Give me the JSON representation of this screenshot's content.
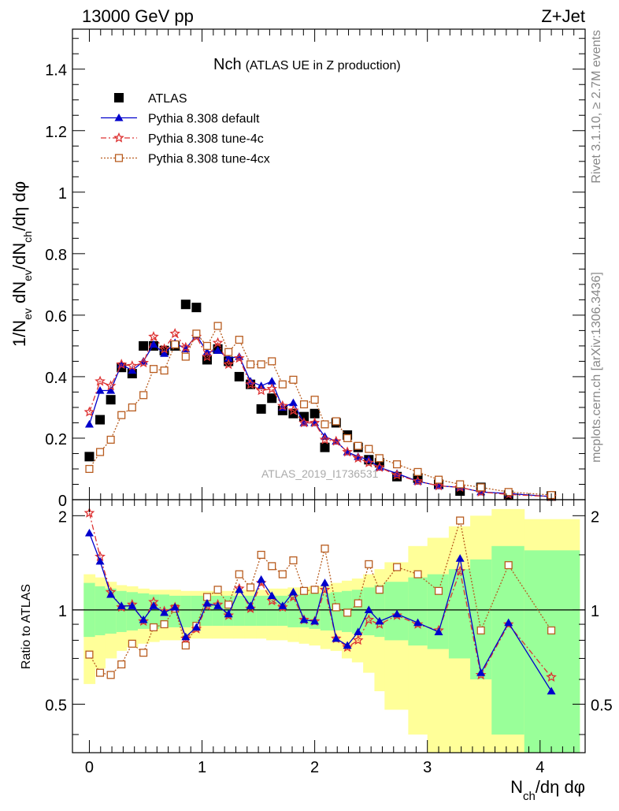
{
  "header": {
    "left": "13000 GeV pp",
    "right": "Z+Jet"
  },
  "side_labels": {
    "rivet": "Rivet 3.1.10, ≥ 2.7M events",
    "mcplots": "mcplots.cern.ch [arXiv:1306.3436]"
  },
  "chart_data": [
    {
      "type": "scatter",
      "panel": "main",
      "title_main": "Nch",
      "title_sub": "(ATLAS UE in Z production)",
      "watermark": "ATLAS_2019_I1736531",
      "ylabel": "1/N_ev dN_ev/dN_ch/dη dφ",
      "ylabel_parts": [
        "1/N",
        "ev",
        " dN",
        "ev",
        "/dN",
        "ch",
        "/dη dφ"
      ],
      "xlim": [
        -0.15,
        4.4
      ],
      "ylim": [
        0,
        1.53
      ],
      "y_ticks": [
        "0",
        "0.2",
        "0.4",
        "0.6",
        "0.8",
        "1",
        "1.2",
        "1.4"
      ],
      "legend_position": "top-left",
      "legend": [
        "ATLAS",
        "Pythia 8.308 default",
        "Pythia 8.308 tune-4c",
        "Pythia 8.308 tune-4cx"
      ],
      "x": [
        0,
        0.095,
        0.19,
        0.285,
        0.38,
        0.48,
        0.57,
        0.665,
        0.76,
        0.855,
        0.95,
        1.045,
        1.14,
        1.235,
        1.33,
        1.43,
        1.525,
        1.62,
        1.715,
        1.81,
        1.905,
        2.0,
        2.09,
        2.19,
        2.29,
        2.385,
        2.48,
        2.575,
        2.73,
        2.915,
        3.1,
        3.29,
        3.475,
        3.72,
        4.1
      ],
      "series": [
        {
          "name": "ATLAS",
          "color": "#000000",
          "marker": "square",
          "values": [
            0.14,
            0.26,
            0.325,
            0.43,
            0.41,
            0.5,
            0.5,
            0.485,
            0.5,
            0.635,
            0.625,
            0.455,
            0.49,
            0.45,
            0.4,
            0.375,
            0.295,
            0.33,
            0.29,
            0.28,
            0.27,
            0.28,
            0.17,
            0.25,
            0.21,
            0.17,
            0.13,
            0.12,
            0.075,
            0.07,
            0.05,
            0.028,
            0.04,
            0.015,
            0.012
          ]
        },
        {
          "name": "Pythia 8.308 default",
          "color": "#0000cc",
          "marker": "triangle",
          "values": [
            0.245,
            0.355,
            0.355,
            0.44,
            0.42,
            0.45,
            0.505,
            0.475,
            0.51,
            0.49,
            0.535,
            0.48,
            0.485,
            0.46,
            0.465,
            0.385,
            0.37,
            0.385,
            0.3,
            0.315,
            0.25,
            0.25,
            0.205,
            0.19,
            0.155,
            0.14,
            0.13,
            0.105,
            0.085,
            0.06,
            0.045,
            0.04,
            0.025,
            0.02,
            0.01
          ]
        },
        {
          "name": "Pythia 8.308 tune-4c",
          "color": "#dd3333",
          "marker": "star",
          "values": [
            0.285,
            0.385,
            0.37,
            0.44,
            0.435,
            0.445,
            0.53,
            0.49,
            0.54,
            0.495,
            0.53,
            0.465,
            0.51,
            0.44,
            0.46,
            0.375,
            0.355,
            0.36,
            0.305,
            0.29,
            0.25,
            0.25,
            0.195,
            0.19,
            0.155,
            0.135,
            0.12,
            0.105,
            0.08,
            0.06,
            0.045,
            0.04,
            0.025,
            0.017,
            0.01
          ]
        },
        {
          "name": "Pythia 8.308 tune-4cx",
          "color": "#b85c1f",
          "marker": "open-square",
          "values": [
            0.1,
            0.155,
            0.195,
            0.275,
            0.3,
            0.34,
            0.425,
            0.42,
            0.505,
            0.465,
            0.54,
            0.5,
            0.565,
            0.48,
            0.52,
            0.44,
            0.44,
            0.45,
            0.375,
            0.39,
            0.31,
            0.325,
            0.245,
            0.255,
            0.2,
            0.175,
            0.165,
            0.135,
            0.115,
            0.09,
            0.065,
            0.05,
            0.04,
            0.025,
            0.015
          ]
        }
      ]
    },
    {
      "type": "line",
      "panel": "ratio",
      "ylabel": "Ratio to ATLAS",
      "xlabel": "N_ch/dη dφ",
      "xlabel_parts": [
        "N",
        "ch",
        "/dη dφ"
      ],
      "xlim": [
        -0.15,
        4.4
      ],
      "ylim": [
        0.35,
        2.25
      ],
      "y_ticks": [
        "0.5",
        "1",
        "2"
      ],
      "x_ticks": [
        "0",
        "1",
        "2",
        "3",
        "4"
      ],
      "reference_line": 1,
      "band_edges": [
        -0.05,
        0.05,
        0.14,
        0.24,
        0.33,
        0.43,
        0.53,
        0.62,
        0.71,
        0.81,
        0.9,
        1.0,
        1.09,
        1.19,
        1.28,
        1.38,
        1.48,
        1.57,
        1.67,
        1.76,
        1.86,
        1.95,
        2.05,
        2.14,
        2.24,
        2.33,
        2.43,
        2.53,
        2.62,
        2.83,
        3.0,
        3.19,
        3.38,
        3.57,
        3.86,
        4.35
      ],
      "band_inner_low": [
        0.82,
        0.83,
        0.84,
        0.85,
        0.86,
        0.87,
        0.87,
        0.88,
        0.88,
        0.88,
        0.89,
        0.89,
        0.89,
        0.89,
        0.89,
        0.89,
        0.89,
        0.89,
        0.89,
        0.88,
        0.88,
        0.87,
        0.86,
        0.86,
        0.85,
        0.84,
        0.83,
        0.82,
        0.8,
        0.77,
        0.75,
        0.7,
        0.6,
        0.4,
        0.35
      ],
      "band_inner_high": [
        1.22,
        1.19,
        1.17,
        1.15,
        1.14,
        1.13,
        1.12,
        1.12,
        1.11,
        1.11,
        1.11,
        1.11,
        1.11,
        1.11,
        1.11,
        1.11,
        1.11,
        1.11,
        1.11,
        1.12,
        1.12,
        1.13,
        1.13,
        1.14,
        1.15,
        1.16,
        1.18,
        1.2,
        1.23,
        1.27,
        1.3,
        1.35,
        1.45,
        1.6,
        1.55
      ],
      "band_outer_low": [
        0.58,
        0.65,
        0.7,
        0.74,
        0.76,
        0.78,
        0.79,
        0.8,
        0.8,
        0.81,
        0.81,
        0.81,
        0.81,
        0.81,
        0.81,
        0.81,
        0.81,
        0.8,
        0.8,
        0.79,
        0.78,
        0.77,
        0.75,
        0.74,
        0.7,
        0.68,
        0.63,
        0.55,
        0.48,
        0.4,
        0.35,
        0.35,
        0.35,
        0.35,
        0.35
      ],
      "band_outer_high": [
        1.3,
        1.27,
        1.23,
        1.2,
        1.19,
        1.17,
        1.16,
        1.16,
        1.16,
        1.15,
        1.15,
        1.15,
        1.15,
        1.15,
        1.16,
        1.16,
        1.16,
        1.17,
        1.17,
        1.18,
        1.18,
        1.19,
        1.2,
        1.22,
        1.24,
        1.26,
        1.3,
        1.35,
        1.42,
        1.6,
        1.7,
        1.85,
        2.0,
        2.1,
        1.95
      ],
      "x": [
        0,
        0.095,
        0.19,
        0.285,
        0.38,
        0.48,
        0.57,
        0.665,
        0.76,
        0.855,
        0.95,
        1.045,
        1.14,
        1.235,
        1.33,
        1.43,
        1.525,
        1.62,
        1.715,
        1.81,
        1.905,
        2.0,
        2.09,
        2.19,
        2.29,
        2.385,
        2.48,
        2.575,
        2.73,
        2.915,
        3.1,
        3.29,
        3.475,
        3.72,
        4.1
      ],
      "series": [
        {
          "name": "Pythia 8.308 default",
          "color": "#0000cc",
          "marker": "triangle",
          "values": [
            1.76,
            1.43,
            1.12,
            1.03,
            1.03,
            0.93,
            1.03,
            0.98,
            1.02,
            0.82,
            0.88,
            1.05,
            1.03,
            0.97,
            1.16,
            1.03,
            1.25,
            1.11,
            1.03,
            1.14,
            0.93,
            0.92,
            1.22,
            0.81,
            0.77,
            0.85,
            1.0,
            0.92,
            0.97,
            0.91,
            0.85,
            1.46,
            0.63,
            0.91,
            0.55
          ]
        },
        {
          "name": "Pythia 8.308 tune-4c",
          "color": "#dd3333",
          "marker": "star",
          "values": [
            2.04,
            1.48,
            1.14,
            1.02,
            1.04,
            0.92,
            1.06,
            0.99,
            1.02,
            0.81,
            0.87,
            1.03,
            1.04,
            0.96,
            1.17,
            1.01,
            1.22,
            1.07,
            1.02,
            1.1,
            0.93,
            0.92,
            1.16,
            0.81,
            0.76,
            0.8,
            0.93,
            0.9,
            0.96,
            0.9,
            0.86,
            1.33,
            0.62,
            0.9,
            0.61
          ]
        },
        {
          "name": "Pythia 8.308 tune-4cx",
          "color": "#b85c1f",
          "marker": "open-square",
          "values": [
            0.72,
            0.63,
            0.62,
            0.67,
            0.78,
            0.73,
            0.88,
            0.9,
            1.01,
            0.77,
            0.89,
            1.1,
            1.16,
            1.04,
            1.3,
            1.18,
            1.5,
            1.38,
            1.3,
            1.44,
            1.15,
            1.16,
            1.57,
            1.02,
            0.98,
            1.05,
            1.4,
            1.16,
            1.37,
            1.3,
            1.15,
            1.93,
            0.86,
            1.39,
            0.86
          ]
        }
      ]
    }
  ]
}
